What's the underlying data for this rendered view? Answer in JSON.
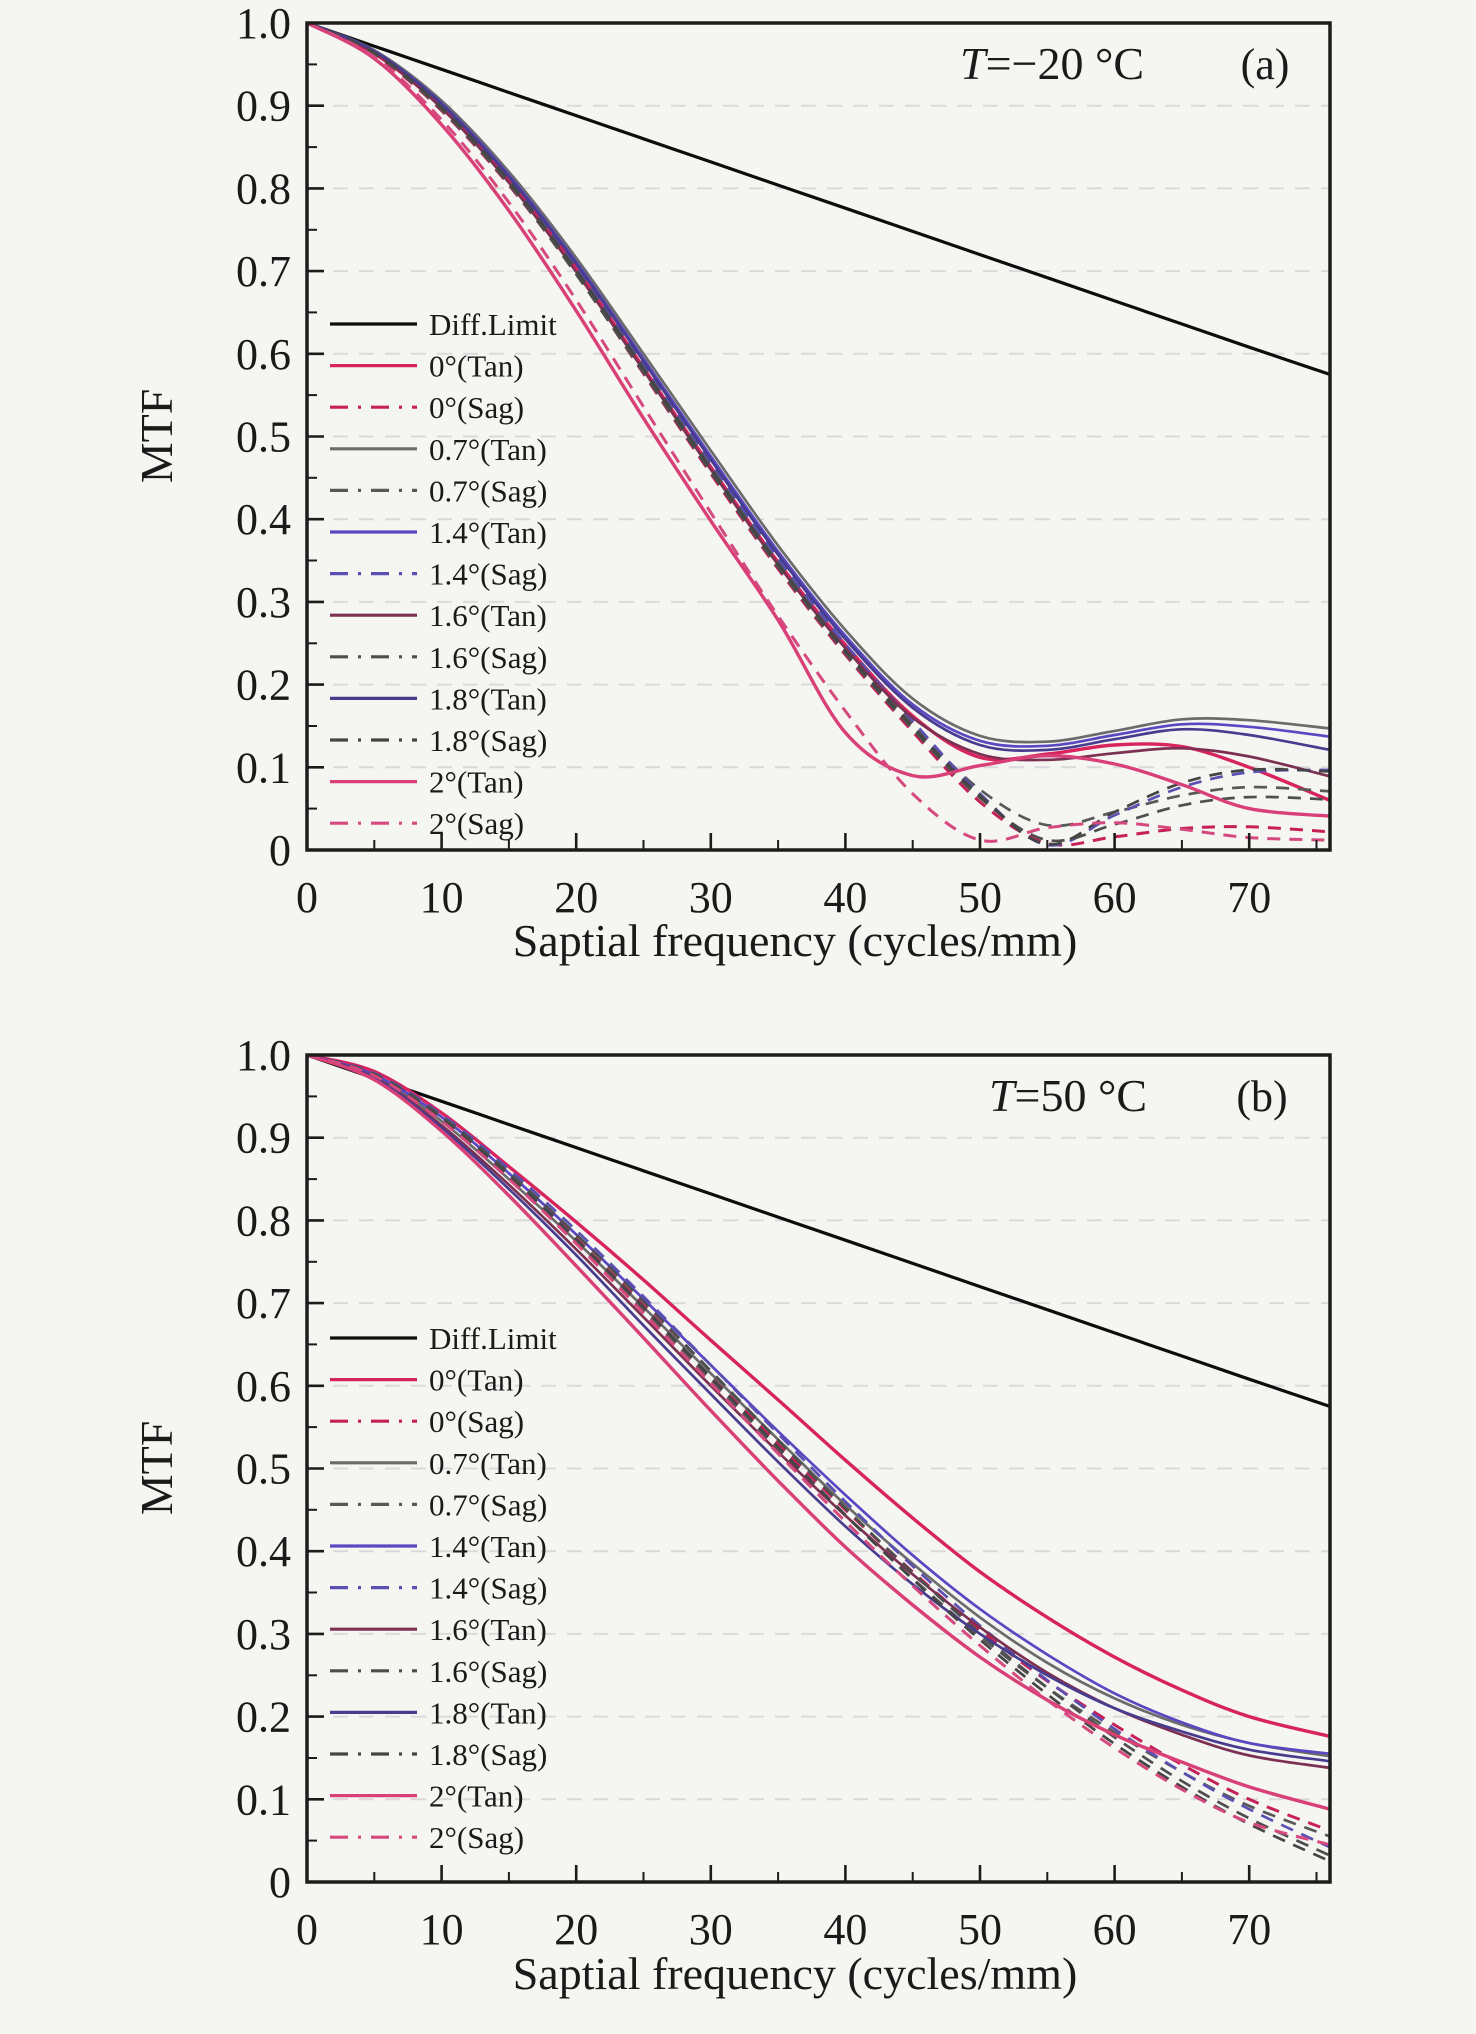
{
  "page": {
    "background": "#f5f5f2"
  },
  "chart_data": [
    {
      "type": "line",
      "panel_label": "(a)",
      "annotation": {
        "var": "T",
        "rest": "=−20 °C"
      },
      "xlabel": "Saptial frequency (cycles/mm)",
      "ylabel": "MTF",
      "xlim": [
        0,
        76
      ],
      "ylim": [
        0,
        1
      ],
      "grid": {
        "horizontal_at": [
          0.1,
          0.2,
          0.3,
          0.4,
          0.5,
          0.6,
          0.7,
          0.8,
          0.9
        ],
        "color": "#dadada",
        "style": "dashed",
        "vertical": false
      },
      "legend_position": "inside-left",
      "x_ticks": {
        "major": [
          0,
          10,
          20,
          30,
          40,
          50,
          60,
          70
        ],
        "labels": [
          "0",
          "10",
          "20",
          "30",
          "40",
          "50",
          "60",
          "70"
        ],
        "minor": [
          5,
          15,
          25,
          35,
          45,
          55,
          65,
          75
        ]
      },
      "y_ticks": {
        "major": [
          1.0,
          0.9,
          0.8,
          0.7,
          0.6,
          0.5,
          0.4,
          0.3,
          0.2,
          0.1,
          0
        ],
        "labels": [
          "1.0",
          "0.9",
          "0.8",
          "0.7",
          "0.6",
          "0.5",
          "0.4",
          "0.3",
          "0.2",
          "0.1",
          "0"
        ],
        "minor": [
          0.95,
          0.85,
          0.75,
          0.65,
          0.55,
          0.45,
          0.35,
          0.25,
          0.15,
          0.05
        ]
      },
      "x": [
        0,
        5,
        10,
        15,
        20,
        25,
        30,
        35,
        40,
        45,
        50,
        55,
        60,
        65,
        70,
        76
      ],
      "series": [
        {
          "name": "Diff.Limit",
          "color": "#0d0d0d",
          "dash": false,
          "width": 3.2,
          "values": [
            1.0,
            0.972,
            0.944,
            0.916,
            0.888,
            0.86,
            0.832,
            0.804,
            0.776,
            0.748,
            0.72,
            0.692,
            0.664,
            0.636,
            0.608,
            0.575
          ]
        },
        {
          "name": "0°(Tan)",
          "color": "#d8245e",
          "dash": false,
          "width": 3.4,
          "values": [
            1.0,
            0.963,
            0.898,
            0.81,
            0.703,
            0.583,
            0.463,
            0.348,
            0.248,
            0.162,
            0.112,
            0.116,
            0.127,
            0.125,
            0.1,
            0.06
          ]
        },
        {
          "name": "0°(Sag)",
          "color": "#c62058",
          "dash": true,
          "width": 3.0,
          "values": [
            1.0,
            0.962,
            0.894,
            0.804,
            0.697,
            0.576,
            0.455,
            0.34,
            0.236,
            0.143,
            0.058,
            0.008,
            0.016,
            0.026,
            0.028,
            0.022
          ]
        },
        {
          "name": "0.7°(Tan)",
          "color": "#6b6b6b",
          "dash": false,
          "width": 2.7,
          "values": [
            1.0,
            0.967,
            0.906,
            0.82,
            0.716,
            0.6,
            0.483,
            0.368,
            0.266,
            0.183,
            0.138,
            0.131,
            0.144,
            0.158,
            0.157,
            0.147
          ]
        },
        {
          "name": "0.7°(Sag)",
          "color": "#585858",
          "dash": true,
          "width": 2.7,
          "values": [
            1.0,
            0.964,
            0.899,
            0.811,
            0.704,
            0.585,
            0.464,
            0.349,
            0.245,
            0.153,
            0.073,
            0.03,
            0.046,
            0.066,
            0.076,
            0.071
          ]
        },
        {
          "name": "1.4°(Tan)",
          "color": "#5948c2",
          "dash": false,
          "width": 2.7,
          "values": [
            1.0,
            0.966,
            0.903,
            0.816,
            0.711,
            0.594,
            0.476,
            0.361,
            0.259,
            0.176,
            0.132,
            0.126,
            0.139,
            0.152,
            0.149,
            0.137
          ]
        },
        {
          "name": "1.4°(Sag)",
          "color": "#5950b2",
          "dash": true,
          "width": 2.7,
          "values": [
            1.0,
            0.965,
            0.901,
            0.813,
            0.707,
            0.589,
            0.469,
            0.353,
            0.249,
            0.156,
            0.068,
            0.006,
            0.042,
            0.076,
            0.094,
            0.097
          ]
        },
        {
          "name": "1.6°(Tan)",
          "color": "#7c3052",
          "dash": false,
          "width": 2.7,
          "values": [
            1.0,
            0.964,
            0.897,
            0.807,
            0.699,
            0.58,
            0.46,
            0.345,
            0.244,
            0.16,
            0.116,
            0.109,
            0.117,
            0.123,
            0.113,
            0.089
          ]
        },
        {
          "name": "1.6°(Sag)",
          "color": "#4e4e4e",
          "dash": true,
          "width": 2.7,
          "values": [
            1.0,
            0.963,
            0.895,
            0.805,
            0.696,
            0.577,
            0.457,
            0.342,
            0.238,
            0.146,
            0.063,
            0.012,
            0.031,
            0.054,
            0.064,
            0.061
          ]
        },
        {
          "name": "1.8°(Tan)",
          "color": "#483c8f",
          "dash": false,
          "width": 2.7,
          "values": [
            1.0,
            0.966,
            0.902,
            0.814,
            0.709,
            0.591,
            0.472,
            0.357,
            0.255,
            0.172,
            0.127,
            0.121,
            0.134,
            0.146,
            0.139,
            0.121
          ]
        },
        {
          "name": "1.8°(Sag)",
          "color": "#454545",
          "dash": true,
          "width": 2.7,
          "values": [
            1.0,
            0.964,
            0.898,
            0.809,
            0.701,
            0.582,
            0.461,
            0.346,
            0.241,
            0.149,
            0.066,
            0.007,
            0.046,
            0.081,
            0.097,
            0.095
          ]
        },
        {
          "name": "2°(Tan)",
          "color": "#d84077",
          "dash": false,
          "width": 3.4,
          "values": [
            1.0,
            0.957,
            0.877,
            0.773,
            0.652,
            0.522,
            0.398,
            0.278,
            0.142,
            0.09,
            0.102,
            0.114,
            0.104,
            0.079,
            0.05,
            0.041
          ]
        },
        {
          "name": "2°(Sag)",
          "color": "#d5497e",
          "dash": true,
          "width": 3.0,
          "values": [
            1.0,
            0.959,
            0.883,
            0.783,
            0.665,
            0.536,
            0.408,
            0.283,
            0.168,
            0.068,
            0.012,
            0.027,
            0.033,
            0.025,
            0.015,
            0.012
          ]
        }
      ]
    },
    {
      "type": "line",
      "panel_label": "(b)",
      "annotation": {
        "var": "T",
        "rest": "=50 °C"
      },
      "xlabel": "Saptial frequency (cycles/mm)",
      "ylabel": "MTF",
      "xlim": [
        0,
        76
      ],
      "ylim": [
        0,
        1
      ],
      "grid": {
        "horizontal_at": [
          0.1,
          0.2,
          0.3,
          0.4,
          0.5,
          0.6,
          0.7,
          0.8,
          0.9
        ],
        "color": "#dadada",
        "style": "dashed",
        "vertical": false
      },
      "legend_position": "inside-left",
      "x_ticks": {
        "major": [
          0,
          10,
          20,
          30,
          40,
          50,
          60,
          70
        ],
        "labels": [
          "0",
          "10",
          "20",
          "30",
          "40",
          "50",
          "60",
          "70"
        ],
        "minor": [
          5,
          15,
          25,
          35,
          45,
          55,
          65,
          75
        ]
      },
      "y_ticks": {
        "major": [
          1.0,
          0.9,
          0.8,
          0.7,
          0.6,
          0.5,
          0.4,
          0.3,
          0.2,
          0.1,
          0
        ],
        "labels": [
          "1.0",
          "0.9",
          "0.8",
          "0.7",
          "0.6",
          "0.5",
          "0.4",
          "0.3",
          "0.2",
          "0.1",
          "0"
        ],
        "minor": [
          0.95,
          0.85,
          0.75,
          0.65,
          0.55,
          0.45,
          0.35,
          0.25,
          0.15,
          0.05
        ]
      },
      "x": [
        0,
        5,
        10,
        15,
        20,
        25,
        30,
        35,
        40,
        45,
        50,
        55,
        60,
        65,
        70,
        76
      ],
      "series": [
        {
          "name": "Diff.Limit",
          "color": "#0d0d0d",
          "dash": false,
          "width": 3.2,
          "values": [
            1.0,
            0.972,
            0.944,
            0.916,
            0.888,
            0.86,
            0.832,
            0.804,
            0.776,
            0.748,
            0.72,
            0.692,
            0.664,
            0.636,
            0.608,
            0.575
          ]
        },
        {
          "name": "0°(Tan)",
          "color": "#d8245e",
          "dash": false,
          "width": 3.4,
          "values": [
            1.0,
            0.98,
            0.93,
            0.865,
            0.798,
            0.728,
            0.655,
            0.583,
            0.51,
            0.44,
            0.375,
            0.32,
            0.272,
            0.232,
            0.2,
            0.176
          ]
        },
        {
          "name": "0°(Sag)",
          "color": "#c62058",
          "dash": true,
          "width": 3.0,
          "values": [
            1.0,
            0.977,
            0.924,
            0.855,
            0.778,
            0.697,
            0.613,
            0.53,
            0.45,
            0.375,
            0.305,
            0.243,
            0.19,
            0.142,
            0.1,
            0.062
          ]
        },
        {
          "name": "0.7°(Tan)",
          "color": "#6b6b6b",
          "dash": false,
          "width": 2.7,
          "values": [
            1.0,
            0.975,
            0.92,
            0.85,
            0.775,
            0.695,
            0.615,
            0.535,
            0.456,
            0.385,
            0.32,
            0.265,
            0.222,
            0.19,
            0.168,
            0.152
          ]
        },
        {
          "name": "0.7°(Sag)",
          "color": "#585858",
          "dash": true,
          "width": 2.7,
          "values": [
            1.0,
            0.976,
            0.922,
            0.852,
            0.774,
            0.691,
            0.607,
            0.523,
            0.443,
            0.367,
            0.297,
            0.235,
            0.181,
            0.133,
            0.092,
            0.055
          ]
        },
        {
          "name": "1.4°(Tan)",
          "color": "#5948c2",
          "dash": false,
          "width": 2.7,
          "values": [
            1.0,
            0.976,
            0.925,
            0.857,
            0.783,
            0.705,
            0.625,
            0.545,
            0.468,
            0.395,
            0.33,
            0.275,
            0.228,
            0.193,
            0.168,
            0.155
          ]
        },
        {
          "name": "1.4°(Sag)",
          "color": "#5950b2",
          "dash": true,
          "width": 2.7,
          "values": [
            1.0,
            0.978,
            0.928,
            0.862,
            0.788,
            0.708,
            0.625,
            0.542,
            0.46,
            0.382,
            0.31,
            0.244,
            0.185,
            0.133,
            0.088,
            0.042
          ]
        },
        {
          "name": "1.6°(Tan)",
          "color": "#7c3052",
          "dash": false,
          "width": 2.7,
          "values": [
            1.0,
            0.973,
            0.915,
            0.843,
            0.765,
            0.683,
            0.6,
            0.52,
            0.443,
            0.372,
            0.308,
            0.253,
            0.21,
            0.178,
            0.153,
            0.138
          ]
        },
        {
          "name": "1.6°(Sag)",
          "color": "#4e4e4e",
          "dash": true,
          "width": 2.7,
          "values": [
            1.0,
            0.977,
            0.926,
            0.858,
            0.783,
            0.702,
            0.618,
            0.534,
            0.452,
            0.374,
            0.301,
            0.235,
            0.175,
            0.122,
            0.077,
            0.032
          ]
        },
        {
          "name": "1.8°(Tan)",
          "color": "#483c8f",
          "dash": false,
          "width": 2.7,
          "values": [
            1.0,
            0.972,
            0.912,
            0.838,
            0.758,
            0.673,
            0.59,
            0.508,
            0.43,
            0.36,
            0.3,
            0.25,
            0.21,
            0.182,
            0.16,
            0.146
          ]
        },
        {
          "name": "1.8°(Sag)",
          "color": "#454545",
          "dash": true,
          "width": 2.7,
          "values": [
            1.0,
            0.976,
            0.923,
            0.854,
            0.777,
            0.695,
            0.61,
            0.526,
            0.444,
            0.366,
            0.293,
            0.227,
            0.167,
            0.115,
            0.07,
            0.025
          ]
        },
        {
          "name": "2°(Tan)",
          "color": "#d84077",
          "dash": false,
          "width": 3.4,
          "values": [
            1.0,
            0.97,
            0.908,
            0.83,
            0.745,
            0.658,
            0.57,
            0.485,
            0.405,
            0.335,
            0.272,
            0.22,
            0.178,
            0.145,
            0.115,
            0.088
          ]
        },
        {
          "name": "2°(Sag)",
          "color": "#d5497e",
          "dash": true,
          "width": 3.0,
          "values": [
            1.0,
            0.975,
            0.92,
            0.85,
            0.772,
            0.688,
            0.603,
            0.518,
            0.436,
            0.358,
            0.286,
            0.22,
            0.162,
            0.112,
            0.072,
            0.045
          ]
        }
      ]
    }
  ]
}
